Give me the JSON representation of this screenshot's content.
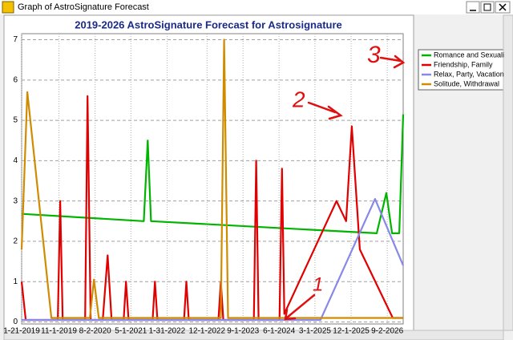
{
  "window": {
    "title": "Graph of AstroSignature Forecast"
  },
  "annotations": [
    "3",
    "2",
    "1"
  ],
  "chart_data": {
    "type": "line",
    "title": "2019-2026 AstroSignature Forecast for Astrosignature",
    "xlim": [
      "2019-01-21",
      "2027-01-01"
    ],
    "xticks": [
      {
        "value": "2019-01-21",
        "label": "1-21-2019"
      },
      {
        "value": "2019-11-01",
        "label": "11-1-2019"
      },
      {
        "value": "2020-08-02",
        "label": "8-2-2020"
      },
      {
        "value": "2021-05-01",
        "label": "5-1-2021"
      },
      {
        "value": "2022-01-31",
        "label": "1-31-2022"
      },
      {
        "value": "2022-12-01",
        "label": "12-1-2022"
      },
      {
        "value": "2023-09-01",
        "label": "9-1-2023"
      },
      {
        "value": "2024-06-01",
        "label": "6-1-2024"
      },
      {
        "value": "2025-03-01",
        "label": "3-1-2025"
      },
      {
        "value": "2025-12-01",
        "label": "12-1-2025"
      },
      {
        "value": "2026-09-02",
        "label": "9-2-2026"
      }
    ],
    "ylim": [
      -0.05,
      7.15
    ],
    "yticks": [
      0,
      1,
      2,
      3,
      4,
      5,
      6,
      7
    ],
    "grid": true,
    "legend": "right",
    "series": [
      {
        "name": "Romance and Sexuali",
        "color": "#00b400",
        "x": [
          "2019-01-21",
          "2021-08-07",
          "2021-09-06",
          "2021-10-01",
          "2026-06-14",
          "2026-08-26",
          "2026-10-08",
          "2026-12-02",
          "2027-01-01"
        ],
        "values": [
          2.68,
          2.5,
          4.5,
          2.5,
          2.2,
          3.2,
          2.2,
          2.2,
          5.15
        ]
      },
      {
        "name": "Friendship, Family",
        "color": "#e00000",
        "x": [
          "2019-01-21",
          "2019-02-21",
          "2019-10-23",
          "2019-11-10",
          "2019-11-29",
          "2020-05-18",
          "2020-06-05",
          "2020-06-29",
          "2020-09-29",
          "2020-11-05",
          "2020-12-05",
          "2021-03-07",
          "2021-03-25",
          "2021-04-13",
          "2021-10-13",
          "2021-10-31",
          "2021-11-19",
          "2022-06-09",
          "2022-06-27",
          "2022-07-15",
          "2023-02-26",
          "2023-03-16",
          "2023-04-04",
          "2023-11-22",
          "2023-12-10",
          "2023-12-28",
          "2024-06-04",
          "2024-06-23",
          "2024-07-11",
          "2025-08-12",
          "2025-10-24",
          "2025-12-06",
          "2026-02-05",
          "2026-10-14",
          "2027-01-01"
        ],
        "values": [
          1.0,
          0.05,
          0.05,
          3.0,
          0.05,
          0.05,
          5.6,
          0.05,
          0.05,
          1.65,
          0.05,
          0.05,
          1.0,
          0.05,
          0.05,
          1.0,
          0.05,
          0.05,
          1.0,
          0.05,
          0.05,
          1.0,
          0.05,
          0.05,
          4.0,
          0.05,
          0.05,
          3.8,
          0.2,
          3.0,
          2.5,
          4.85,
          1.8,
          0.1,
          0.1
        ]
      },
      {
        "name": "Relax, Party, Vacation",
        "color": "#8888e8",
        "x": [
          "2019-01-21",
          "2025-04-12",
          "2026-06-01",
          "2027-01-01"
        ],
        "values": [
          0.05,
          0.05,
          3.05,
          1.4
        ]
      },
      {
        "name": "Solitude, Withdrawal",
        "color": "#d08c00",
        "x": [
          "2019-01-21",
          "2019-03-05",
          "2019-09-04",
          "2020-06-23",
          "2020-07-24",
          "2020-08-30",
          "2023-03-16",
          "2023-04-10",
          "2023-05-10",
          "2027-01-01"
        ],
        "values": [
          1.8,
          5.7,
          0.1,
          0.1,
          1.05,
          0.1,
          0.1,
          7.0,
          0.1,
          0.1
        ]
      }
    ]
  }
}
